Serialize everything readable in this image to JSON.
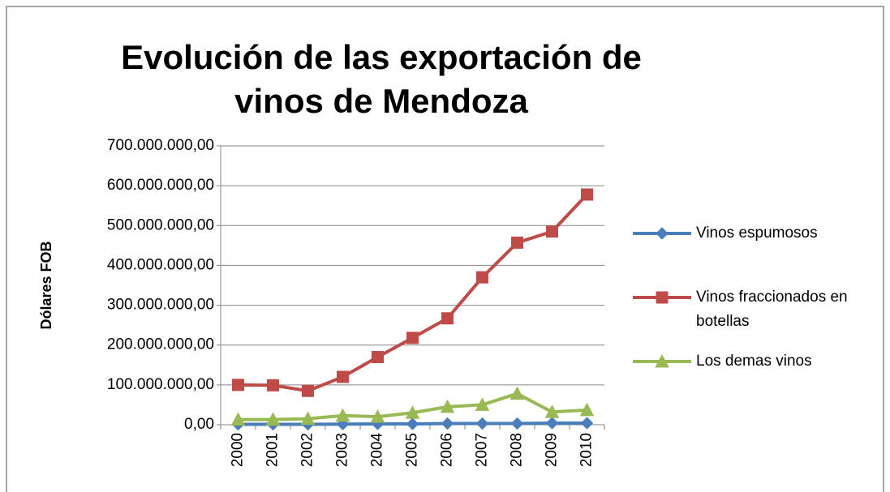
{
  "chart_data": {
    "type": "line",
    "title": "Evolución de las exportación de vinos de Mendoza",
    "y_label": "Dólares FOB",
    "categories": [
      "2000",
      "2001",
      "2002",
      "2003",
      "2004",
      "2005",
      "2006",
      "2007",
      "2008",
      "2009",
      "2010"
    ],
    "series": [
      {
        "name": "Vinos espumosos",
        "color": "#4a7ebb",
        "marker": "diamond",
        "values": [
          1000000,
          1000000,
          1000000,
          1500000,
          2000000,
          2000000,
          3000000,
          3000000,
          3000000,
          4000000,
          4000000
        ]
      },
      {
        "name": "Vinos fraccionados en botellas",
        "color": "#be4b48",
        "marker": "square",
        "values": [
          100000000,
          99000000,
          85000000,
          120000000,
          170000000,
          218000000,
          267000000,
          370000000,
          457000000,
          485000000,
          578000000
        ]
      },
      {
        "name": "Los demas vinos",
        "color": "#98b954",
        "marker": "triangle",
        "values": [
          13000000,
          13000000,
          15000000,
          23000000,
          20000000,
          30000000,
          45000000,
          50000000,
          78000000,
          32000000,
          37000000
        ]
      }
    ],
    "ylim": [
      0,
      700000000
    ],
    "yticks": [
      {
        "value": 0,
        "label": "0,00"
      },
      {
        "value": 100000000,
        "label": "100.000.000,00"
      },
      {
        "value": 200000000,
        "label": "200.000.000,00"
      },
      {
        "value": 300000000,
        "label": "300.000.000,00"
      },
      {
        "value": 400000000,
        "label": "400.000.000,00"
      },
      {
        "value": 500000000,
        "label": "500.000.000,00"
      },
      {
        "value": 600000000,
        "label": "600.000.000,00"
      },
      {
        "value": 700000000,
        "label": "700.000.000,00"
      }
    ],
    "grid": true,
    "legend": "right"
  }
}
